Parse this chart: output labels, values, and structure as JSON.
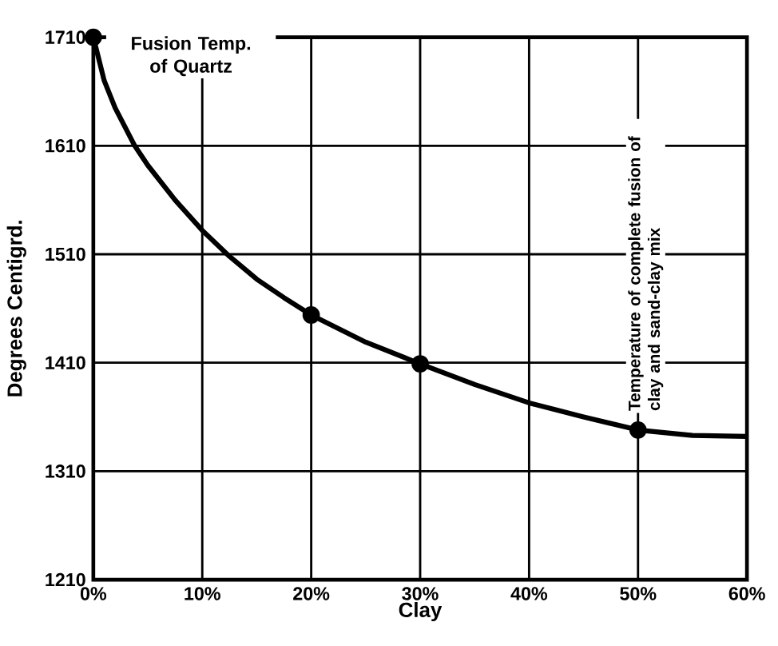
{
  "chart_data": {
    "type": "line",
    "xlabel": "Clay",
    "ylabel": "Degrees Centigrd.",
    "series": [
      {
        "color": "#000000",
        "marker": "none",
        "x": [
          0,
          1,
          2,
          3.8,
          5,
          7.5,
          10,
          12.5,
          15,
          17.5,
          20,
          25,
          30,
          35,
          40,
          45,
          50,
          55,
          60
        ],
        "values": [
          1710,
          1670,
          1645,
          1610,
          1592,
          1560,
          1532,
          1508,
          1487,
          1470,
          1454,
          1429,
          1409,
          1390,
          1373,
          1360,
          1348,
          1343,
          1342
        ]
      },
      {
        "type": "scatter",
        "color": "#000000",
        "marker": "circle",
        "x": [
          0,
          20,
          30,
          50
        ],
        "values": [
          1710,
          1454,
          1409,
          1348
        ]
      }
    ],
    "xlim": [
      0,
      60
    ],
    "ylim": [
      1210,
      1710
    ],
    "xticks": [
      {
        "value": 0,
        "label": "0%"
      },
      {
        "value": 10,
        "label": "10%"
      },
      {
        "value": 20,
        "label": "20%"
      },
      {
        "value": 30,
        "label": "30%"
      },
      {
        "value": 40,
        "label": "40%"
      },
      {
        "value": 50,
        "label": "50%"
      },
      {
        "value": 60,
        "label": "60%"
      }
    ],
    "yticks": [
      1210,
      1310,
      1410,
      1510,
      1610,
      1710
    ],
    "grid": true,
    "annotations": [
      {
        "text": "Fusion Temp. of Quartz",
        "x": 0,
        "y": 1710
      },
      {
        "text": "Temperature of complete fusion of clay and sand-clay mix",
        "x": 50,
        "y": 1348
      }
    ]
  }
}
